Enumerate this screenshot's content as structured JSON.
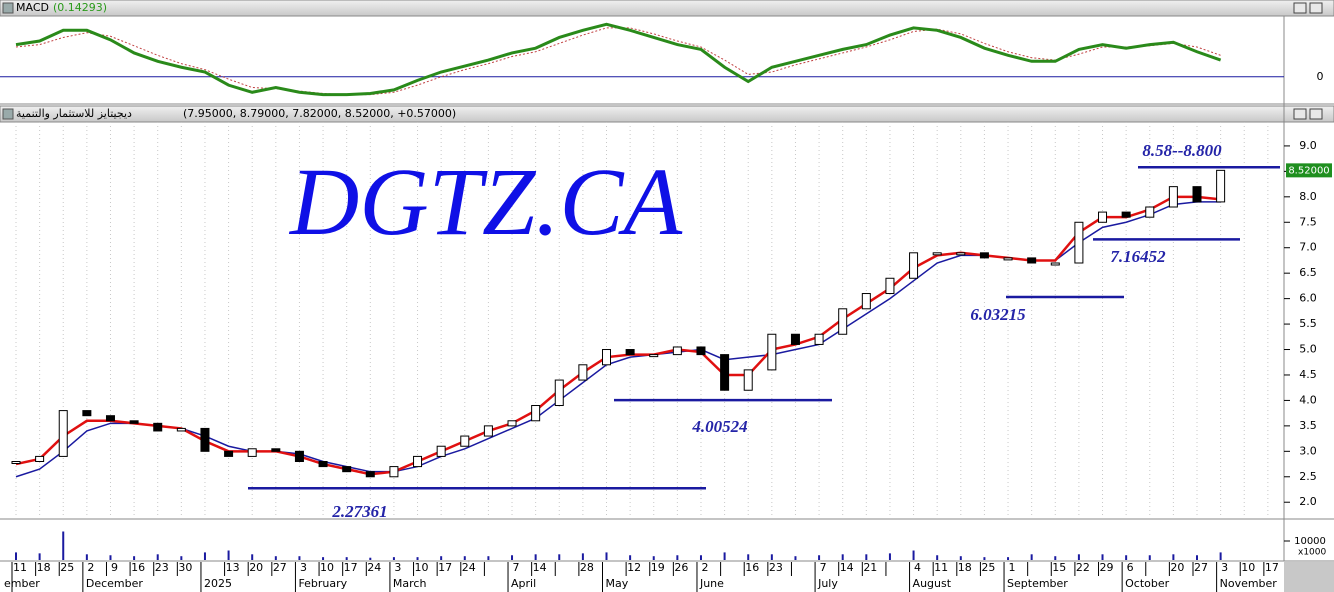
{
  "chart_data": [
    {
      "type": "line",
      "title": "MACD",
      "subtitle": "(0.14293)",
      "series": [
        {
          "color": "#2a8a1a",
          "values": [
            0.27,
            0.3,
            0.39,
            0.39,
            0.31,
            0.2,
            0.13,
            0.08,
            0.04,
            -0.07,
            -0.13,
            -0.09,
            -0.13,
            -0.15,
            -0.15,
            -0.14,
            -0.11,
            -0.03,
            0.04,
            0.09,
            0.14,
            0.2,
            0.24,
            0.33,
            0.39,
            0.44,
            0.39,
            0.33,
            0.27,
            0.23,
            0.08,
            -0.04,
            0.08,
            0.13,
            0.18,
            0.23,
            0.27,
            0.35,
            0.41,
            0.39,
            0.33,
            0.24,
            0.18,
            0.13,
            0.13,
            0.23,
            0.27,
            0.24,
            0.27,
            0.29,
            0.21,
            0.14,
            null,
            null
          ]
        },
        {
          "color": "#c04040",
          "values": [
            0.25,
            0.27,
            0.33,
            0.37,
            0.34,
            0.26,
            0.18,
            0.11,
            0.06,
            -0.02,
            -0.09,
            -0.1,
            -0.12,
            -0.14,
            -0.15,
            -0.15,
            -0.13,
            -0.07,
            0.0,
            0.06,
            0.11,
            0.17,
            0.21,
            0.28,
            0.35,
            0.41,
            0.41,
            0.36,
            0.3,
            0.25,
            0.14,
            0.02,
            0.04,
            0.1,
            0.15,
            0.2,
            0.25,
            0.31,
            0.38,
            0.4,
            0.36,
            0.28,
            0.21,
            0.16,
            0.14,
            0.19,
            0.25,
            0.25,
            0.26,
            0.28,
            0.25,
            0.18,
            null,
            null
          ]
        }
      ],
      "ylim": [
        -0.22,
        0.51
      ],
      "yticks": [
        0
      ]
    },
    {
      "type": "candlestick",
      "title": "ديجيتايز للاستثمار والتنمية",
      "subtitle": "(7.95000, 8.79000, 7.82000, 8.52000, +0.57000)",
      "watermark": "DGTZ.CA",
      "categories": [
        "11",
        "18",
        "25",
        "2",
        "9",
        "16",
        "23",
        "30",
        null,
        "13",
        "20",
        "27",
        "3",
        "10",
        "17",
        "24",
        "3",
        "10",
        "17",
        "24",
        null,
        "7",
        "14",
        null,
        "28",
        null,
        "12",
        "19",
        "26",
        "2",
        null,
        "16",
        "23",
        null,
        "7",
        "14",
        "21",
        null,
        "4",
        "11",
        "18",
        "25",
        "1",
        null,
        "15",
        "22",
        "29",
        "6",
        null,
        "20",
        "27",
        "3",
        "10",
        "17"
      ],
      "month_labels": [
        "ember",
        null,
        null,
        "December",
        null,
        null,
        null,
        null,
        "2025",
        null,
        null,
        null,
        "February",
        null,
        null,
        null,
        "March",
        null,
        null,
        null,
        null,
        "April",
        null,
        null,
        null,
        "May",
        null,
        null,
        null,
        "June",
        null,
        null,
        null,
        null,
        "July",
        null,
        null,
        null,
        "August",
        null,
        null,
        null,
        "September",
        null,
        null,
        null,
        null,
        "October",
        null,
        null,
        null,
        "November",
        null,
        null
      ],
      "close": [
        2.8,
        2.9,
        3.8,
        3.7,
        3.6,
        3.55,
        3.4,
        3.45,
        3.0,
        2.9,
        3.05,
        3.0,
        2.8,
        2.7,
        2.6,
        2.5,
        2.7,
        2.9,
        3.1,
        3.3,
        3.5,
        3.6,
        3.9,
        4.4,
        4.7,
        5.0,
        4.9,
        4.9,
        5.05,
        4.9,
        4.2,
        4.6,
        5.3,
        5.1,
        5.3,
        5.8,
        6.1,
        6.4,
        6.9,
        6.9,
        6.9,
        6.8,
        6.8,
        6.7,
        6.7,
        7.5,
        7.7,
        7.6,
        7.8,
        8.2,
        7.9,
        8.52,
        null,
        null
      ],
      "lines": [
        {
          "color": "#e01010",
          "values": [
            2.75,
            2.85,
            3.3,
            3.6,
            3.6,
            3.55,
            3.5,
            3.45,
            3.2,
            3.0,
            3.0,
            3.0,
            2.9,
            2.75,
            2.65,
            2.55,
            2.6,
            2.8,
            3.0,
            3.2,
            3.4,
            3.55,
            3.8,
            4.2,
            4.55,
            4.85,
            4.9,
            4.9,
            5.0,
            4.95,
            4.5,
            4.5,
            5.0,
            5.1,
            5.25,
            5.6,
            5.9,
            6.2,
            6.6,
            6.85,
            6.9,
            6.85,
            6.8,
            6.75,
            6.75,
            7.3,
            7.6,
            7.6,
            7.75,
            8.0,
            8.0,
            7.95,
            null,
            null
          ]
        },
        {
          "color": "#1a1aa0",
          "values": [
            2.5,
            2.65,
            3.0,
            3.4,
            3.55,
            3.55,
            3.5,
            3.45,
            3.3,
            3.1,
            3.0,
            3.0,
            2.95,
            2.8,
            2.7,
            2.6,
            2.6,
            2.7,
            2.9,
            3.05,
            3.25,
            3.45,
            3.65,
            4.0,
            4.35,
            4.7,
            4.85,
            4.9,
            4.95,
            5.0,
            4.8,
            4.85,
            4.9,
            5.0,
            5.1,
            5.4,
            5.7,
            6.0,
            6.35,
            6.7,
            6.85,
            6.85,
            6.8,
            6.75,
            6.75,
            7.1,
            7.4,
            7.5,
            7.65,
            7.85,
            7.9,
            7.9,
            null,
            null
          ]
        }
      ],
      "ylim": [
        1.69,
        9.47
      ],
      "yticks": [
        {
          "value": 2,
          "label": "2.0"
        },
        2.5,
        {
          "value": 3,
          "label": "3.0"
        },
        3.5,
        {
          "value": 4,
          "label": "4.0"
        },
        4.5,
        {
          "value": 5,
          "label": "5.0"
        },
        5.5,
        {
          "value": 6,
          "label": "6.0"
        },
        6.5,
        {
          "value": 7,
          "label": "7.0"
        },
        7.5,
        {
          "value": 8,
          "label": "8.0"
        },
        8.5,
        {
          "value": 9,
          "label": "9.0"
        }
      ],
      "last": {
        "value": 8.52,
        "label": "8.52000"
      },
      "levels": [
        2.27361,
        4.00524,
        6.03215,
        7.16452,
        {
          "value": 8.58,
          "label": "8.58--8.800"
        }
      ]
    },
    {
      "type": "bar",
      "color": "#1a1aa0",
      "values": [
        4000,
        3500,
        15000,
        3000,
        2500,
        2000,
        3000,
        2000,
        4000,
        5000,
        3000,
        2000,
        2000,
        1500,
        1500,
        1200,
        1500,
        1500,
        2000,
        2000,
        2000,
        2500,
        3000,
        3000,
        3500,
        4000,
        2500,
        2000,
        2500,
        2500,
        4000,
        3000,
        3000,
        2000,
        2500,
        3000,
        3000,
        3500,
        5000,
        2500,
        2000,
        1500,
        1500,
        3000,
        2000,
        3000,
        3000,
        2500,
        2500,
        3000,
        2500,
        4000,
        null,
        null
      ],
      "ylim": [
        0,
        20000
      ],
      "yticks": [
        10000
      ],
      "unit_label": "x1000"
    }
  ]
}
